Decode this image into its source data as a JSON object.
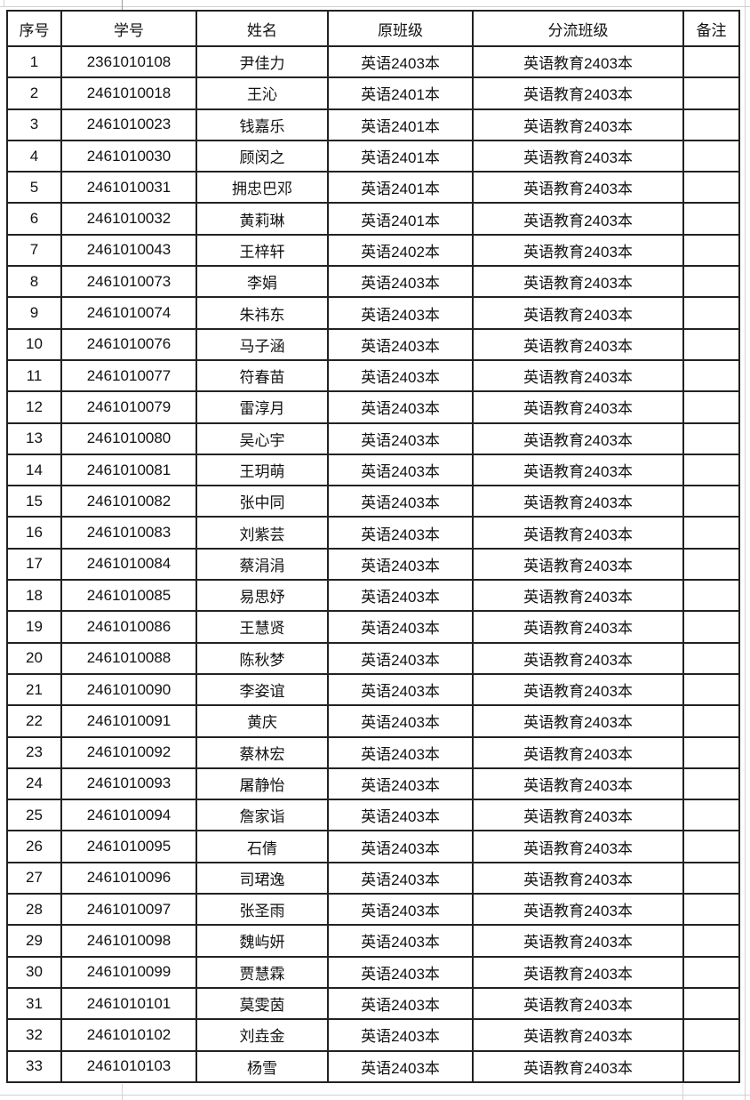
{
  "page": {
    "background": "#ffffff"
  },
  "colors": {
    "table_border": "#222222",
    "text": "#121212",
    "faint_grid": "#d2d2d2"
  },
  "table": {
    "columns": [
      {
        "key": "serial",
        "label": "序号"
      },
      {
        "key": "student_id",
        "label": "学号"
      },
      {
        "key": "name",
        "label": "姓名"
      },
      {
        "key": "original_class",
        "label": "原班级"
      },
      {
        "key": "diverted_class",
        "label": "分流班级"
      },
      {
        "key": "note",
        "label": "备注"
      }
    ],
    "rows": [
      {
        "serial": "1",
        "student_id": "2361010108",
        "name": "尹佳力",
        "original_class": "英语2403本",
        "diverted_class": "英语教育2403本",
        "note": ""
      },
      {
        "serial": "2",
        "student_id": "2461010018",
        "name": "王沁",
        "original_class": "英语2401本",
        "diverted_class": "英语教育2403本",
        "note": ""
      },
      {
        "serial": "3",
        "student_id": "2461010023",
        "name": "钱嘉乐",
        "original_class": "英语2401本",
        "diverted_class": "英语教育2403本",
        "note": ""
      },
      {
        "serial": "4",
        "student_id": "2461010030",
        "name": "顾闵之",
        "original_class": "英语2401本",
        "diverted_class": "英语教育2403本",
        "note": ""
      },
      {
        "serial": "5",
        "student_id": "2461010031",
        "name": "拥忠巴邓",
        "original_class": "英语2401本",
        "diverted_class": "英语教育2403本",
        "note": ""
      },
      {
        "serial": "6",
        "student_id": "2461010032",
        "name": "黄莉琳",
        "original_class": "英语2401本",
        "diverted_class": "英语教育2403本",
        "note": ""
      },
      {
        "serial": "7",
        "student_id": "2461010043",
        "name": "王梓轩",
        "original_class": "英语2402本",
        "diverted_class": "英语教育2403本",
        "note": ""
      },
      {
        "serial": "8",
        "student_id": "2461010073",
        "name": "李娟",
        "original_class": "英语2403本",
        "diverted_class": "英语教育2403本",
        "note": ""
      },
      {
        "serial": "9",
        "student_id": "2461010074",
        "name": "朱祎东",
        "original_class": "英语2403本",
        "diverted_class": "英语教育2403本",
        "note": ""
      },
      {
        "serial": "10",
        "student_id": "2461010076",
        "name": "马子涵",
        "original_class": "英语2403本",
        "diverted_class": "英语教育2403本",
        "note": ""
      },
      {
        "serial": "11",
        "student_id": "2461010077",
        "name": "符春苗",
        "original_class": "英语2403本",
        "diverted_class": "英语教育2403本",
        "note": ""
      },
      {
        "serial": "12",
        "student_id": "2461010079",
        "name": "雷淳月",
        "original_class": "英语2403本",
        "diverted_class": "英语教育2403本",
        "note": ""
      },
      {
        "serial": "13",
        "student_id": "2461010080",
        "name": "吴心宇",
        "original_class": "英语2403本",
        "diverted_class": "英语教育2403本",
        "note": ""
      },
      {
        "serial": "14",
        "student_id": "2461010081",
        "name": "王玥萌",
        "original_class": "英语2403本",
        "diverted_class": "英语教育2403本",
        "note": ""
      },
      {
        "serial": "15",
        "student_id": "2461010082",
        "name": "张中同",
        "original_class": "英语2403本",
        "diverted_class": "英语教育2403本",
        "note": ""
      },
      {
        "serial": "16",
        "student_id": "2461010083",
        "name": "刘紫芸",
        "original_class": "英语2403本",
        "diverted_class": "英语教育2403本",
        "note": ""
      },
      {
        "serial": "17",
        "student_id": "2461010084",
        "name": "蔡涓涓",
        "original_class": "英语2403本",
        "diverted_class": "英语教育2403本",
        "note": ""
      },
      {
        "serial": "18",
        "student_id": "2461010085",
        "name": "易思妤",
        "original_class": "英语2403本",
        "diverted_class": "英语教育2403本",
        "note": ""
      },
      {
        "serial": "19",
        "student_id": "2461010086",
        "name": "王慧贤",
        "original_class": "英语2403本",
        "diverted_class": "英语教育2403本",
        "note": ""
      },
      {
        "serial": "20",
        "student_id": "2461010088",
        "name": "陈秋梦",
        "original_class": "英语2403本",
        "diverted_class": "英语教育2403本",
        "note": ""
      },
      {
        "serial": "21",
        "student_id": "2461010090",
        "name": "李姿谊",
        "original_class": "英语2403本",
        "diverted_class": "英语教育2403本",
        "note": ""
      },
      {
        "serial": "22",
        "student_id": "2461010091",
        "name": "黄庆",
        "original_class": "英语2403本",
        "diverted_class": "英语教育2403本",
        "note": ""
      },
      {
        "serial": "23",
        "student_id": "2461010092",
        "name": "蔡林宏",
        "original_class": "英语2403本",
        "diverted_class": "英语教育2403本",
        "note": ""
      },
      {
        "serial": "24",
        "student_id": "2461010093",
        "name": "屠静怡",
        "original_class": "英语2403本",
        "diverted_class": "英语教育2403本",
        "note": ""
      },
      {
        "serial": "25",
        "student_id": "2461010094",
        "name": "詹家诣",
        "original_class": "英语2403本",
        "diverted_class": "英语教育2403本",
        "note": ""
      },
      {
        "serial": "26",
        "student_id": "2461010095",
        "name": "石倩",
        "original_class": "英语2403本",
        "diverted_class": "英语教育2403本",
        "note": ""
      },
      {
        "serial": "27",
        "student_id": "2461010096",
        "name": "司珺逸",
        "original_class": "英语2403本",
        "diverted_class": "英语教育2403本",
        "note": ""
      },
      {
        "serial": "28",
        "student_id": "2461010097",
        "name": "张圣雨",
        "original_class": "英语2403本",
        "diverted_class": "英语教育2403本",
        "note": ""
      },
      {
        "serial": "29",
        "student_id": "2461010098",
        "name": "魏屿妍",
        "original_class": "英语2403本",
        "diverted_class": "英语教育2403本",
        "note": ""
      },
      {
        "serial": "30",
        "student_id": "2461010099",
        "name": "贾慧霖",
        "original_class": "英语2403本",
        "diverted_class": "英语教育2403本",
        "note": ""
      },
      {
        "serial": "31",
        "student_id": "2461010101",
        "name": "莫雯茵",
        "original_class": "英语2403本",
        "diverted_class": "英语教育2403本",
        "note": ""
      },
      {
        "serial": "32",
        "student_id": "2461010102",
        "name": "刘垚金",
        "original_class": "英语2403本",
        "diverted_class": "英语教育2403本",
        "note": ""
      },
      {
        "serial": "33",
        "student_id": "2461010103",
        "name": "杨雪",
        "original_class": "英语2403本",
        "diverted_class": "英语教育2403本",
        "note": ""
      }
    ]
  }
}
